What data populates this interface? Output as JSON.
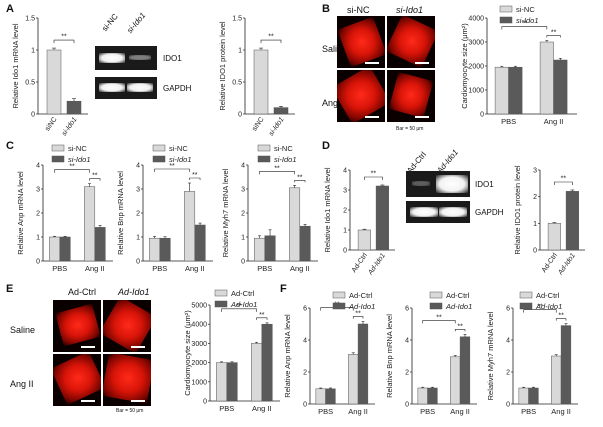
{
  "panel_letters": [
    "A",
    "B",
    "C",
    "D",
    "E",
    "F"
  ],
  "blots": {
    "A": {
      "top_label_1": "si-NC",
      "top_label_2": "si-Ido1",
      "band_1": "IDO1",
      "band_2": "GAPDH"
    },
    "D": {
      "top_label_1": "Ad-Ctrl",
      "top_label_2": "Ad-Ido1",
      "band_1": "IDO1",
      "band_2": "GAPDH"
    }
  },
  "micrographs": {
    "B": {
      "col_1": "si-NC",
      "col_2": "si-Ido1",
      "row_1": "Saline",
      "row_2": "Ang II",
      "bar": "Bar = 50 μm"
    },
    "E": {
      "col_1": "Ad-Ctrl",
      "col_2": "Ad-Ido1",
      "row_1": "Saline",
      "row_2": "Ang II",
      "bar": "Bar = 50 μm"
    }
  },
  "colors": {
    "light": "#d9d9d9",
    "dark": "#5a5a5a",
    "ink": "#222222"
  },
  "chart_data": [
    {
      "id": "A1",
      "type": "bar",
      "ylabel": "Relative Ido1 mRNA level",
      "ylim": [
        0,
        1.5
      ],
      "yticks": [
        0,
        0.5,
        1.0,
        1.5
      ],
      "categories": [
        "siNC",
        "si-Ido1"
      ],
      "values": [
        1.0,
        0.2
      ],
      "errors": [
        0.03,
        0.04
      ],
      "sig": [
        "**"
      ],
      "style": "pair"
    },
    {
      "id": "A2",
      "type": "bar",
      "ylabel": "Relative IDO1 protein level",
      "ylim": [
        0,
        1.5
      ],
      "yticks": [
        0,
        0.5,
        1.0,
        1.5
      ],
      "categories": [
        "siNC",
        "si-Ido1"
      ],
      "values": [
        1.0,
        0.1
      ],
      "errors": [
        0.03,
        0.02
      ],
      "sig": [
        "**"
      ],
      "style": "pair"
    },
    {
      "id": "B",
      "type": "bar",
      "ylabel": "Cardiomyocyte size (μm²)",
      "ylim": [
        0,
        4000
      ],
      "yticks": [
        0,
        1000,
        2000,
        3000,
        4000
      ],
      "categories": [
        "PBS",
        "Ang II"
      ],
      "series": [
        {
          "name": "si-NC",
          "values": [
            1950,
            3000
          ]
        },
        {
          "name": "si-Ido1",
          "values": [
            1950,
            2250
          ]
        }
      ],
      "errors": [
        [
          40,
          60
        ],
        [
          40,
          70
        ]
      ],
      "sig": [
        "**",
        "**"
      ],
      "legend": [
        "si-NC",
        "si-Ido1"
      ],
      "style": "group"
    },
    {
      "id": "C1",
      "type": "bar",
      "ylabel": "Relative Anp mRNA level",
      "ylim": [
        0,
        4
      ],
      "yticks": [
        0,
        1,
        2,
        3,
        4
      ],
      "categories": [
        "PBS",
        "Ang II"
      ],
      "series": [
        {
          "name": "si-NC",
          "values": [
            1.0,
            3.1
          ]
        },
        {
          "name": "si-Ido1",
          "values": [
            1.0,
            1.4
          ]
        }
      ],
      "errors": [
        [
          0.03,
          0.12
        ],
        [
          0.03,
          0.08
        ]
      ],
      "sig": [
        "**",
        "**"
      ],
      "legend": [
        "si-NC",
        "si-Ido1"
      ],
      "style": "group"
    },
    {
      "id": "C2",
      "type": "bar",
      "ylabel": "Relative Bnp mRNA level",
      "ylim": [
        0,
        4
      ],
      "yticks": [
        0,
        1,
        2,
        3,
        4
      ],
      "categories": [
        "PBS",
        "Ang II"
      ],
      "series": [
        {
          "name": "si-NC",
          "values": [
            0.95,
            2.9
          ]
        },
        {
          "name": "si-Ido1",
          "values": [
            0.95,
            1.5
          ]
        }
      ],
      "errors": [
        [
          0.08,
          0.35
        ],
        [
          0.06,
          0.08
        ]
      ],
      "sig": [
        "**",
        "**"
      ],
      "legend": [
        "si-NC",
        "si-Ido1"
      ],
      "style": "group"
    },
    {
      "id": "C3",
      "type": "bar",
      "ylabel": "Relative Myh7 mRNA level",
      "ylim": [
        0,
        4
      ],
      "yticks": [
        0,
        1,
        2,
        3,
        4
      ],
      "categories": [
        "PBS",
        "Ang II"
      ],
      "series": [
        {
          "name": "si-NC",
          "values": [
            0.95,
            3.05
          ]
        },
        {
          "name": "si-Ido1",
          "values": [
            1.05,
            1.45
          ]
        }
      ],
      "errors": [
        [
          0.1,
          0.1
        ],
        [
          0.25,
          0.08
        ]
      ],
      "sig": [
        "**",
        "**"
      ],
      "legend": [
        "si-NC",
        "si-Ido1"
      ],
      "style": "group"
    },
    {
      "id": "D1",
      "type": "bar",
      "ylabel": "Relative Ido1 mRNA level",
      "ylim": [
        0,
        4
      ],
      "yticks": [
        0,
        1,
        2,
        3,
        4
      ],
      "categories": [
        "Ad-Ctrl",
        "Ad-Ido1"
      ],
      "values": [
        1.0,
        3.2
      ],
      "errors": [
        0.04,
        0.05
      ],
      "sig": [
        "**"
      ],
      "style": "pair"
    },
    {
      "id": "D2",
      "type": "bar",
      "ylabel": "Relative IDO1 protein level",
      "ylim": [
        0,
        3
      ],
      "yticks": [
        0,
        1,
        2,
        3
      ],
      "categories": [
        "Ad-Ctrl",
        "Ad-Ido1"
      ],
      "values": [
        1.0,
        2.2
      ],
      "errors": [
        0.03,
        0.05
      ],
      "sig": [
        "**"
      ],
      "style": "pair"
    },
    {
      "id": "E",
      "type": "bar",
      "ylabel": "Cardiomyocyte size (μm²)",
      "ylim": [
        0,
        5000
      ],
      "yticks": [
        0,
        1000,
        2000,
        3000,
        4000,
        5000
      ],
      "categories": [
        "PBS",
        "Ang II"
      ],
      "series": [
        {
          "name": "Ad-Ctrl",
          "values": [
            2000,
            3000
          ]
        },
        {
          "name": "Ad-Ido1",
          "values": [
            2000,
            4000
          ]
        }
      ],
      "errors": [
        [
          40,
          60
        ],
        [
          40,
          70
        ]
      ],
      "sig": [
        "**",
        "**"
      ],
      "legend": [
        "Ad-Ctrl",
        "Ad-Ido1"
      ],
      "style": "group"
    },
    {
      "id": "F1",
      "type": "bar",
      "ylabel": "Relative Anp mRNA level",
      "ylim": [
        0,
        6
      ],
      "yticks": [
        0,
        2,
        4,
        6
      ],
      "categories": [
        "PBS",
        "Ang II"
      ],
      "series": [
        {
          "name": "Ad-Ctrl",
          "values": [
            0.95,
            3.1
          ]
        },
        {
          "name": "Ad-Ido1",
          "values": [
            0.95,
            5.0
          ]
        }
      ],
      "errors": [
        [
          0.05,
          0.1
        ],
        [
          0.05,
          0.15
        ]
      ],
      "sig": [
        "**",
        "**"
      ],
      "legend": [
        "Ad-Ctrl",
        "Ad-Ido1"
      ],
      "style": "group"
    },
    {
      "id": "F2",
      "type": "bar",
      "ylabel": "Relative Bnp mRNA level",
      "ylim": [
        0,
        6
      ],
      "yticks": [
        0,
        2,
        4,
        6
      ],
      "categories": [
        "PBS",
        "Ang II"
      ],
      "series": [
        {
          "name": "Ad-Ctrl",
          "values": [
            1.0,
            2.95
          ]
        },
        {
          "name": "Ad-Ido1",
          "values": [
            1.0,
            4.2
          ]
        }
      ],
      "errors": [
        [
          0.05,
          0.08
        ],
        [
          0.05,
          0.15
        ]
      ],
      "sig": [
        "**",
        "**"
      ],
      "legend": [
        "Ad-Ctrl",
        "Ad-Ido1"
      ],
      "style": "group"
    },
    {
      "id": "F3",
      "type": "bar",
      "ylabel": "Relative Myh7 mRNA level",
      "ylim": [
        0,
        6
      ],
      "yticks": [
        0,
        2,
        4,
        6
      ],
      "categories": [
        "PBS",
        "Ang II"
      ],
      "series": [
        {
          "name": "Ad-Ctrl",
          "values": [
            1.0,
            3.0
          ]
        },
        {
          "name": "Ad-Ido1",
          "values": [
            1.0,
            4.9
          ]
        }
      ],
      "errors": [
        [
          0.05,
          0.08
        ],
        [
          0.05,
          0.12
        ]
      ],
      "sig": [
        "**",
        "**"
      ],
      "legend": [
        "Ad-Ctrl",
        "Ad-Ido1"
      ],
      "style": "group"
    }
  ]
}
